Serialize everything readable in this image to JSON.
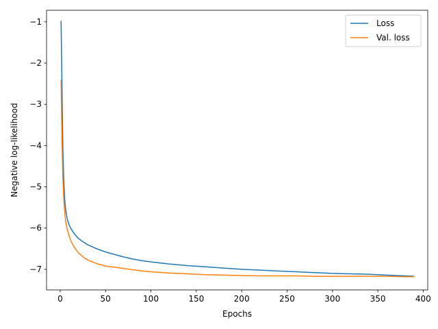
{
  "chart_data": {
    "type": "line",
    "xlabel": "Epochs",
    "ylabel": "Negative log-likelihood",
    "xlim": [
      -15,
      405
    ],
    "ylim": [
      -7.5,
      -0.72
    ],
    "xticks": [
      0,
      50,
      100,
      150,
      200,
      250,
      300,
      350,
      400
    ],
    "yticks": [
      -7,
      -6,
      -5,
      -4,
      -3,
      -2,
      -1
    ],
    "xtick_labels": [
      "0",
      "50",
      "100",
      "150",
      "200",
      "250",
      "300",
      "350",
      "400"
    ],
    "ytick_labels": [
      "−7",
      "−6",
      "−5",
      "−4",
      "−3",
      "−2",
      "−1"
    ],
    "grid": false,
    "legend_position": "top-right",
    "series": [
      {
        "name": "Loss",
        "color": "#1f77b4",
        "x": [
          1,
          2,
          3,
          4,
          5,
          6,
          8,
          10,
          12,
          15,
          20,
          25,
          30,
          40,
          50,
          60,
          70,
          80,
          90,
          100,
          120,
          140,
          160,
          180,
          200,
          220,
          240,
          260,
          280,
          300,
          320,
          340,
          360,
          380,
          390
        ],
        "y": [
          -0.98,
          -2.5,
          -4.1,
          -4.85,
          -5.3,
          -5.55,
          -5.8,
          -5.93,
          -6.02,
          -6.12,
          -6.25,
          -6.33,
          -6.4,
          -6.5,
          -6.58,
          -6.64,
          -6.7,
          -6.75,
          -6.79,
          -6.82,
          -6.87,
          -6.91,
          -6.94,
          -6.97,
          -7.0,
          -7.02,
          -7.04,
          -7.06,
          -7.08,
          -7.1,
          -7.11,
          -7.12,
          -7.14,
          -7.16,
          -7.17
        ]
      },
      {
        "name": "Val. loss",
        "color": "#ff7f0e",
        "x": [
          1,
          2,
          3,
          4,
          5,
          6,
          8,
          10,
          12,
          15,
          20,
          25,
          30,
          40,
          50,
          60,
          70,
          80,
          90,
          100,
          120,
          140,
          160,
          180,
          200,
          220,
          240,
          260,
          280,
          300,
          320,
          340,
          360,
          380,
          390
        ],
        "y": [
          -2.4,
          -3.9,
          -4.8,
          -5.3,
          -5.6,
          -5.85,
          -6.05,
          -6.2,
          -6.32,
          -6.45,
          -6.6,
          -6.7,
          -6.77,
          -6.86,
          -6.92,
          -6.95,
          -6.98,
          -7.01,
          -7.04,
          -7.06,
          -7.09,
          -7.11,
          -7.13,
          -7.14,
          -7.15,
          -7.16,
          -7.16,
          -7.16,
          -7.17,
          -7.17,
          -7.17,
          -7.17,
          -7.17,
          -7.18,
          -7.18
        ]
      }
    ]
  }
}
